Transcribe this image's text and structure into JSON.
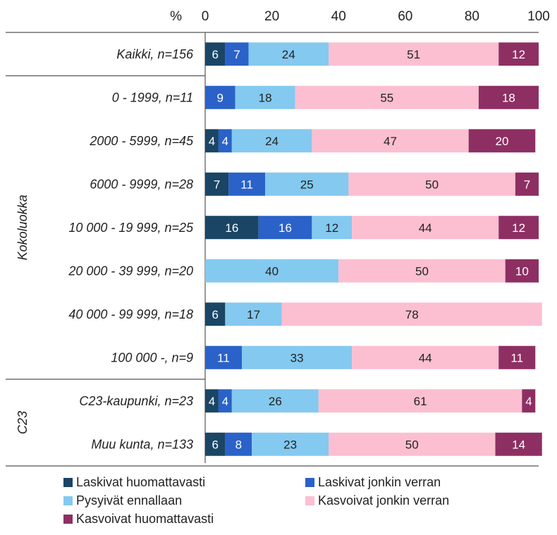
{
  "chart_data": {
    "type": "bar",
    "orientation": "horizontal",
    "stacked": true,
    "axis_unit_label": "%",
    "xlim": [
      0,
      100
    ],
    "xticks": [
      0,
      20,
      40,
      60,
      80,
      100
    ],
    "categories": [
      "Kaikki, n=156",
      "0 - 1999, n=11",
      "2000 - 5999, n=45",
      "6000 - 9999, n=28",
      "10 000 - 19 999, n=25",
      "20 000 - 39 999, n=20",
      "40 000 - 99 999, n=18",
      "100 000 -, n=9",
      "C23-kaupunki, n=23",
      "Muu kunta, n=133"
    ],
    "groups": [
      {
        "label": "",
        "first": 0,
        "last": 0
      },
      {
        "label": "Kokoluokka",
        "first": 1,
        "last": 7
      },
      {
        "label": "C23",
        "first": 8,
        "last": 9
      }
    ],
    "series": [
      {
        "name": "Laskivat huomattavasti",
        "color": "#1a4565",
        "label_color": "#ffffff",
        "values": [
          6,
          0,
          4,
          7,
          16,
          0,
          6,
          0,
          4,
          6
        ]
      },
      {
        "name": "Laskivat jonkin verran",
        "color": "#2a62c9",
        "label_color": "#ffffff",
        "values": [
          7,
          9,
          4,
          11,
          16,
          0,
          0,
          11,
          4,
          8
        ]
      },
      {
        "name": "Pysyivät ennallaan",
        "color": "#84c9ef",
        "label_color": "#222222",
        "values": [
          24,
          18,
          24,
          25,
          12,
          40,
          17,
          33,
          26,
          23
        ]
      },
      {
        "name": "Kasvoivat jonkin verran",
        "color": "#fbbfd1",
        "label_color": "#222222",
        "values": [
          51,
          55,
          47,
          50,
          44,
          50,
          78,
          44,
          61,
          50
        ]
      },
      {
        "name": "Kasvoivat huomattavasti",
        "color": "#8e2f63",
        "label_color": "#ffffff",
        "values": [
          12,
          18,
          20,
          7,
          12,
          10,
          0,
          11,
          4,
          14
        ]
      }
    ],
    "legend_position": "bottom",
    "grid": false
  }
}
